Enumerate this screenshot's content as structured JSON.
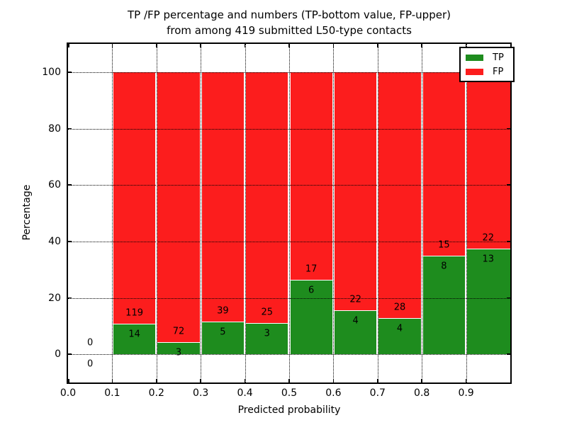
{
  "title": {
    "line1": "TP /FP percentage and numbers (TP-bottom value, FP-upper)",
    "line2": "from among 419 submitted L50-type contacts"
  },
  "chart_data": {
    "type": "bar",
    "stacked": true,
    "normalized": "each bar totals 100%; green TP on bottom, red FP filling to 100",
    "title": "TP /FP percentage and numbers (TP-bottom value, FP-upper) from among 419 submitted L50-type contacts",
    "xlabel": "Predicted probability",
    "ylabel": "Percentage",
    "xlim": [
      0.0,
      1.0
    ],
    "ylim": [
      -10,
      110
    ],
    "x_ticks": [
      {
        "value": 0.0,
        "label": "0.0"
      },
      {
        "value": 0.1,
        "label": "0.1"
      },
      {
        "value": 0.2,
        "label": "0.2"
      },
      {
        "value": 0.3,
        "label": "0.3"
      },
      {
        "value": 0.4,
        "label": "0.4"
      },
      {
        "value": 0.5,
        "label": "0.5"
      },
      {
        "value": 0.6,
        "label": "0.6"
      },
      {
        "value": 0.7,
        "label": "0.7"
      },
      {
        "value": 0.8,
        "label": "0.8"
      },
      {
        "value": 0.9,
        "label": "0.9"
      }
    ],
    "y_ticks": [
      {
        "value": 0,
        "label": "0"
      },
      {
        "value": 20,
        "label": "20"
      },
      {
        "value": 40,
        "label": "40"
      },
      {
        "value": 60,
        "label": "60"
      },
      {
        "value": 80,
        "label": "80"
      },
      {
        "value": 100,
        "label": "100"
      }
    ],
    "grid": "dotted black, both axes, drawn above bars",
    "colors": {
      "tp": "#1e8c1e",
      "fp": "#fc1d1d"
    },
    "legend": {
      "position": "upper right",
      "entries": [
        {
          "label": "TP",
          "color": "#1e8c1e"
        },
        {
          "label": "FP",
          "color": "#fc1d1d"
        }
      ]
    },
    "bins": [
      {
        "x0": 0.0,
        "x1": 0.1,
        "tp": 0,
        "fp": 0,
        "tp_percent": 0
      },
      {
        "x0": 0.1,
        "x1": 0.2,
        "tp": 14,
        "fp": 119,
        "tp_percent": 10.53
      },
      {
        "x0": 0.2,
        "x1": 0.3,
        "tp": 3,
        "fp": 72,
        "tp_percent": 4.0
      },
      {
        "x0": 0.3,
        "x1": 0.4,
        "tp": 5,
        "fp": 39,
        "tp_percent": 11.36
      },
      {
        "x0": 0.4,
        "x1": 0.5,
        "tp": 3,
        "fp": 25,
        "tp_percent": 10.71
      },
      {
        "x0": 0.5,
        "x1": 0.6,
        "tp": 6,
        "fp": 17,
        "tp_percent": 26.09
      },
      {
        "x0": 0.6,
        "x1": 0.7,
        "tp": 4,
        "fp": 22,
        "tp_percent": 15.38
      },
      {
        "x0": 0.7,
        "x1": 0.8,
        "tp": 4,
        "fp": 28,
        "tp_percent": 12.5
      },
      {
        "x0": 0.8,
        "x1": 0.9,
        "tp": 8,
        "fp": 15,
        "tp_percent": 34.78
      },
      {
        "x0": 0.9,
        "x1": 1.0,
        "tp": 13,
        "fp": 22,
        "tp_percent": 37.14
      }
    ]
  }
}
